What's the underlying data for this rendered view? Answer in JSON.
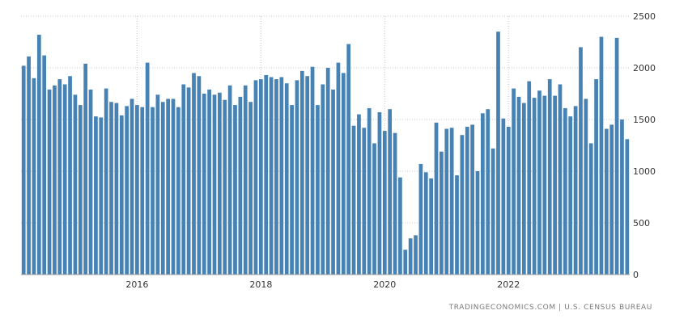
{
  "chart_data": {
    "type": "bar",
    "ylim": [
      0,
      2500
    ],
    "yticks": [
      0,
      500,
      1000,
      1500,
      2000,
      2500
    ],
    "xticks": [
      "2016",
      "2018",
      "2020",
      "2022"
    ],
    "x_start": "2014-03",
    "x_end": "2023-12",
    "grid": true,
    "bar_color": "#4682b4",
    "values": [
      2020,
      2110,
      1900,
      2320,
      2120,
      1790,
      1830,
      1890,
      1840,
      1920,
      1740,
      1640,
      2040,
      1790,
      1530,
      1520,
      1800,
      1670,
      1660,
      1540,
      1630,
      1700,
      1640,
      1620,
      2050,
      1620,
      1740,
      1670,
      1700,
      1700,
      1620,
      1840,
      1810,
      1950,
      1920,
      1750,
      1790,
      1740,
      1760,
      1690,
      1830,
      1640,
      1720,
      1830,
      1670,
      1880,
      1890,
      1930,
      1910,
      1890,
      1910,
      1850,
      1640,
      1880,
      1970,
      1920,
      2010,
      1640,
      1840,
      2000,
      1790,
      2050,
      1950,
      2230,
      1440,
      1550,
      1420,
      1610,
      1270,
      1570,
      1390,
      1600,
      1370,
      940,
      240,
      350,
      380,
      1070,
      990,
      930,
      1470,
      1190,
      1410,
      1420,
      960,
      1350,
      1430,
      1450,
      1000,
      1560,
      1600,
      1220,
      2350,
      1510,
      1430,
      1800,
      1720,
      1660,
      1870,
      1710,
      1780,
      1730,
      1890,
      1730,
      1840,
      1610,
      1530,
      1630,
      2200,
      1700,
      1270,
      1890,
      2300,
      1410,
      1450,
      2290,
      1500,
      1310
    ]
  },
  "footer": {
    "text": "TRADINGECONOMICS.COM  |  U.S. CENSUS BUREAU"
  }
}
